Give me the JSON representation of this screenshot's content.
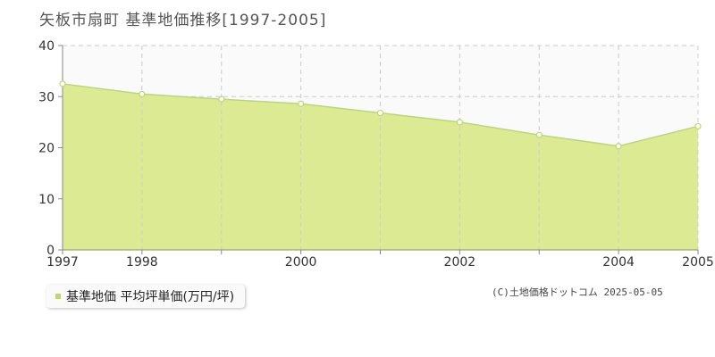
{
  "title": "矢板市扇町 基準地価推移[1997-2005]",
  "copyright": "(C)土地価格ドットコム 2025-05-05",
  "colors": {
    "area_fill": "#dceb93",
    "area_line": "#bcd86a",
    "point_fill": "#ffffff",
    "plot_bg": "#fafafa",
    "grid": "#cccccc",
    "axis": "#888888"
  },
  "chart_data": {
    "type": "area",
    "title": "矢板市扇町 基準地価推移[1997-2005]",
    "xlabel": "",
    "ylabel": "",
    "x": [
      1997,
      1998,
      1999,
      2000,
      2001,
      2002,
      2003,
      2004,
      2005
    ],
    "x_tick_labels": [
      "1997",
      "1998",
      "2000",
      "2002",
      "2004",
      "2005"
    ],
    "y_ticks": [
      0,
      10,
      20,
      30,
      40
    ],
    "xlim": [
      1997,
      2005
    ],
    "ylim": [
      0,
      40
    ],
    "grid": true,
    "legend_position": "bottom-left",
    "series": [
      {
        "name": "基準地価 平均坪単価(万円/坪)",
        "values": [
          32.5,
          30.5,
          29.5,
          28.6,
          26.8,
          25.0,
          22.5,
          20.3,
          24.2
        ]
      }
    ]
  }
}
